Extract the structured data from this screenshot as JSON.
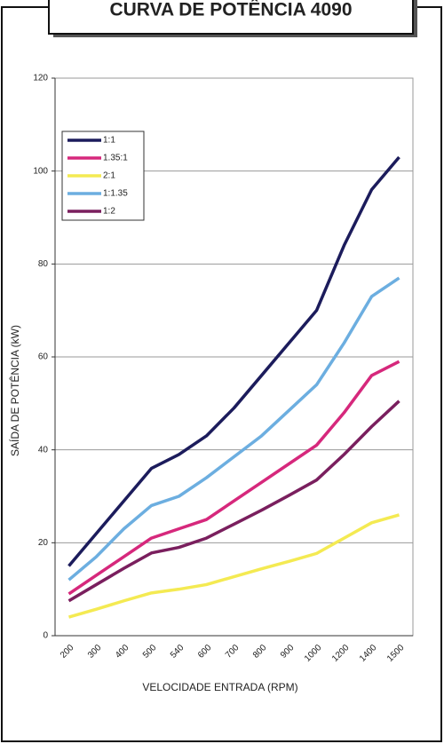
{
  "chart_data": {
    "type": "line",
    "title": "CURVA DE POTÊNCIA 4090",
    "ylabel": "SAÍDA DE POTÊNCIA (kW)",
    "xlabel": "VELOCIDADE ENTRADA (RPM)",
    "categories": [
      "200",
      "300",
      "400",
      "500",
      "540",
      "600",
      "700",
      "800",
      "900",
      "1000",
      "1200",
      "1400",
      "1500"
    ],
    "series": [
      {
        "name": "1:1",
        "color": "#1c1c5c",
        "values": [
          15,
          22,
          29,
          36,
          39,
          43,
          49,
          56,
          63,
          70,
          84,
          96,
          103
        ]
      },
      {
        "name": "1.35:1",
        "color": "#d6287c",
        "values": [
          9,
          13,
          17,
          21,
          23,
          25,
          29,
          33,
          37,
          41,
          48,
          56,
          59
        ]
      },
      {
        "name": "2:1",
        "color": "#f4ea52",
        "values": [
          4,
          5.7,
          7.5,
          9.2,
          10,
          11,
          12.7,
          14.4,
          16,
          17.7,
          21,
          24.3,
          26
        ]
      },
      {
        "name": "1:1.35",
        "color": "#6caee0",
        "values": [
          12,
          17,
          23,
          28,
          30,
          34,
          38.5,
          43,
          48.5,
          54,
          63,
          73,
          77
        ]
      },
      {
        "name": "1:2",
        "color": "#7a1f5e",
        "values": [
          7.5,
          11,
          14.5,
          17.8,
          19,
          21,
          24,
          27,
          30.2,
          33.5,
          39,
          45,
          50.5
        ]
      }
    ],
    "ylim": [
      0,
      120
    ],
    "yticks": [
      0,
      20,
      40,
      60,
      80,
      100,
      120
    ],
    "grid": true,
    "legend": "upper left"
  }
}
